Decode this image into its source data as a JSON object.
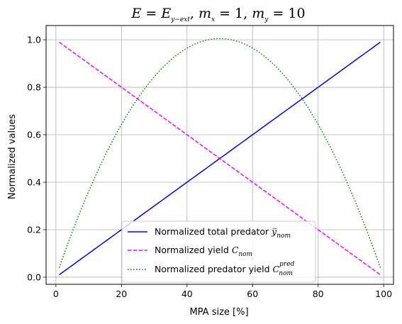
{
  "chart_data": {
    "type": "line",
    "title": {
      "lhs": "E",
      "eq": " = ",
      "rhs_base": "E",
      "rhs_sub": "y−ext",
      "sep1": ",   ",
      "mx_base": "m",
      "mx_sub": "x",
      "mx_val": " = 1",
      "sep2": ",   ",
      "my_base": "m",
      "my_sub": "y",
      "my_val": " = 10"
    },
    "xlabel": "MPA size [%]",
    "ylabel": "Normalized values",
    "xlim": [
      -3,
      103
    ],
    "ylim": [
      -0.03,
      1.06
    ],
    "xticks": [
      0,
      20,
      40,
      60,
      80,
      100
    ],
    "yticks": [
      0.0,
      0.2,
      0.4,
      0.6,
      0.8,
      1.0
    ],
    "xtick_labels": [
      "0",
      "20",
      "40",
      "60",
      "80",
      "100"
    ],
    "ytick_labels": [
      "0.0",
      "0.2",
      "0.4",
      "0.6",
      "0.8",
      "1.0"
    ],
    "grid": true,
    "legend_position": "lower center",
    "x_range": [
      1,
      99
    ],
    "series": [
      {
        "name": "Normalized total predator y̅nom",
        "label_text": "Normalized total predator ",
        "label_math": "y̅",
        "label_sub": "nom",
        "label_sup": "",
        "color": "#0000ff",
        "style": "solid",
        "formula": "linear-increasing",
        "y_start": 0.01,
        "y_end": 0.99
      },
      {
        "name": "Normalized yield Cnom",
        "label_text": "Normalized yield ",
        "label_math": "C",
        "label_sub": "nom",
        "label_sup": "",
        "color": "#ff00ff",
        "style": "dashed",
        "formula": "linear-decreasing",
        "y_start": 0.99,
        "y_end": 0.01
      },
      {
        "name": "Normalized predator yield Cnom pred",
        "label_text": "Normalized predator yield ",
        "label_math": "C",
        "label_sub": "nom",
        "label_sup": "pred",
        "color": "#008000",
        "style": "dotted",
        "formula": "parabola",
        "peak_x": 50,
        "peak_y": 1.005,
        "y_start": 0.04,
        "y_end": 0.04
      }
    ]
  }
}
